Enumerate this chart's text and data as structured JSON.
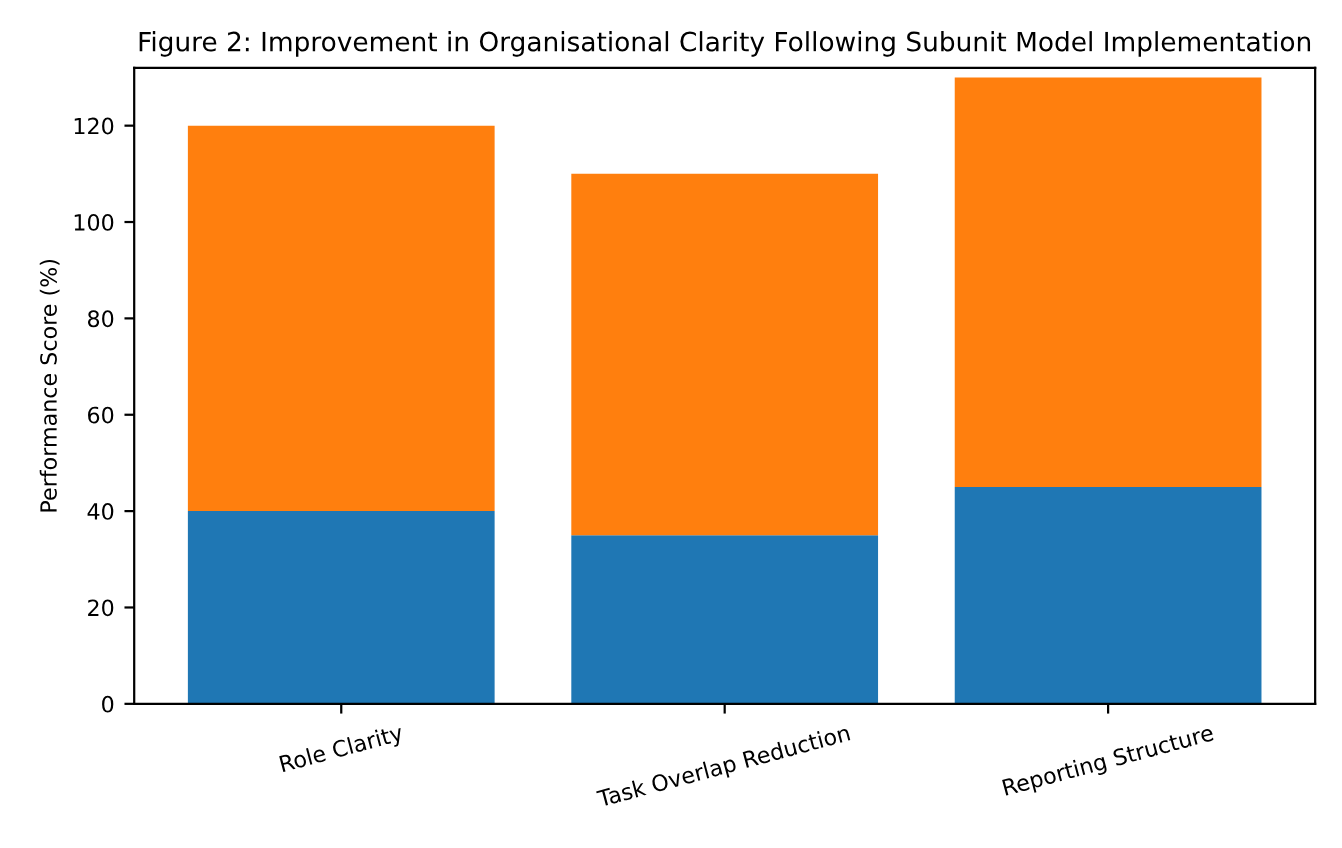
{
  "chart_data": {
    "type": "bar",
    "title": "Figure 2: Improvement in Organisational Clarity Following Subunit Model Implementation",
    "ylabel": "Performance Score (%)",
    "categories": [
      "Role Clarity",
      "Task Overlap Reduction",
      "Reporting Structure"
    ],
    "stacked": true,
    "series": [
      {
        "color": "#1f77b4",
        "values": [
          40,
          35,
          45
        ]
      },
      {
        "color": "#ff7f0e",
        "values": [
          80,
          75,
          85
        ]
      }
    ],
    "ylim": [
      0,
      132
    ],
    "yticks": [
      0,
      20,
      40,
      60,
      80,
      100,
      120
    ],
    "grid": false,
    "legend": false
  }
}
